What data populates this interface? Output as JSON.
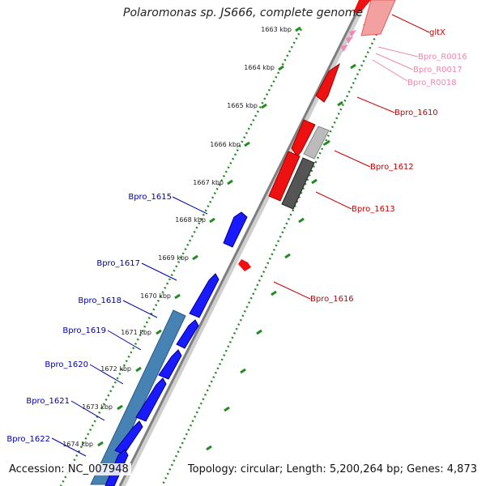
{
  "title": "Polaromonas sp. JS666, complete genome",
  "footer": {
    "accession": "Accession: NC_007948",
    "summary": "Topology: circular; Length: 5,200,264 bp; Genes: 4,873"
  },
  "colors": {
    "forward_gene": "#ff0000",
    "reverse_gene": "#0000ff",
    "rna_gene": "#f08cb4",
    "pseudo_gene": "#666666",
    "reverse_operon": "#4682b4",
    "backbone": "#808080",
    "tick": "#228b22",
    "blue_label": "#0000aa",
    "red_label": "#cc0000",
    "pink_label": "#ee88aa"
  },
  "ticks": [
    "1663 kbp",
    "1664 kbp",
    "1665 kbp",
    "1666 kbp",
    "1667 kbp",
    "1668 kbp",
    "1669 kbp",
    "1670 kbp",
    "1671 kbp",
    "1672 kbp",
    "1673 kbp",
    "1674 kbp"
  ],
  "gene_labels": {
    "right": [
      "gltX",
      "Bpro_R0016",
      "Bpro_R0017",
      "Bpro_R0018",
      "Bpro_1610",
      "Bpro_1612",
      "Bpro_1613",
      "Bpro_1616"
    ],
    "left": [
      "Bpro_1615",
      "Bpro_1617",
      "Bpro_1618",
      "Bpro_1619",
      "Bpro_1620",
      "Bpro_1621",
      "Bpro_1622"
    ]
  }
}
